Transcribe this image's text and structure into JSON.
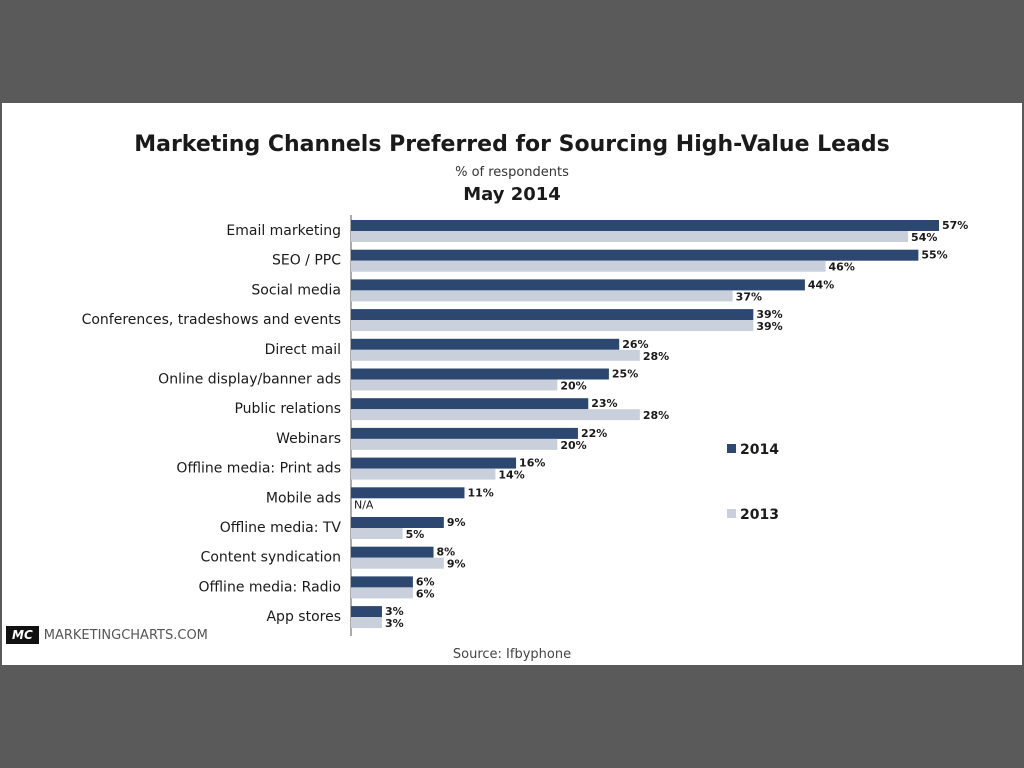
{
  "chart_data": {
    "type": "bar",
    "orientation": "horizontal",
    "title": "Marketing Channels Preferred for Sourcing High-Value Leads",
    "subtitle": "% of respondents",
    "date": "May 2014",
    "categories": [
      "Email marketing",
      "SEO / PPC",
      "Social media",
      "Conferences, tradeshows and events",
      "Direct mail",
      "Online display/banner ads",
      "Public relations",
      "Webinars",
      "Offline media: Print ads",
      "Mobile ads",
      "Offline media: TV",
      "Content syndication",
      "Offline media: Radio",
      "App stores"
    ],
    "series": [
      {
        "name": "2014",
        "color": "#2c4770",
        "values": [
          57,
          55,
          44,
          39,
          26,
          25,
          23,
          22,
          16,
          11,
          9,
          8,
          6,
          3
        ],
        "labels": [
          "57%",
          "55%",
          "44%",
          "39%",
          "26%",
          "25%",
          "23%",
          "22%",
          "16%",
          "11%",
          "9%",
          "8%",
          "6%",
          "3%"
        ]
      },
      {
        "name": "2013",
        "color": "#c9d0dc",
        "values": [
          54,
          46,
          37,
          39,
          28,
          20,
          28,
          20,
          14,
          null,
          5,
          9,
          6,
          3
        ],
        "labels": [
          "54%",
          "46%",
          "37%",
          "39%",
          "28%",
          "20%",
          "28%",
          "20%",
          "14%",
          "N/A",
          "5%",
          "9%",
          "6%",
          "3%"
        ]
      }
    ],
    "xlim": [
      0,
      57
    ],
    "grid": false,
    "legend_position": "right"
  },
  "footer": {
    "logo_badge": "MC",
    "logo_text": "MARKETINGCHARTS.COM",
    "source": "Source: Ifbyphone"
  }
}
